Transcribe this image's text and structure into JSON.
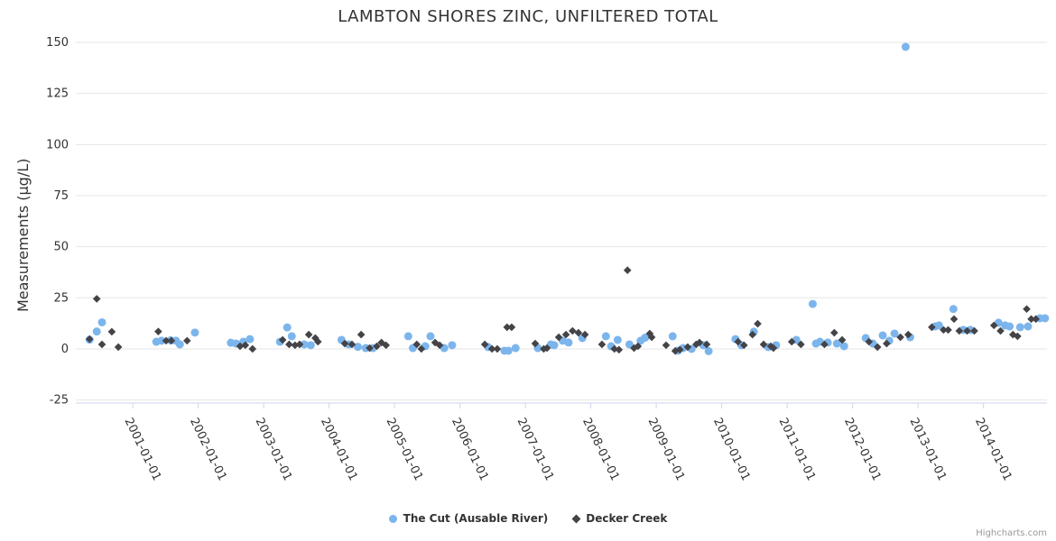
{
  "credits": "Highcharts.com",
  "colors": {
    "background": "#ffffff",
    "grid_line": "#e6e6e6",
    "axis_line": "#ccd6eb",
    "tick_label": "#333333",
    "title": "#333333",
    "credits_text": "#999999",
    "series_blue": "#7cb5ec",
    "series_dark": "#434348"
  },
  "chart_data": {
    "type": "scatter",
    "title": "LAMBTON SHORES ZINC, UNFILTERED TOTAL",
    "xlabel": "",
    "ylabel": "Measurements (µg/L)",
    "xlim": [
      2000.13,
      2014.97
    ],
    "ylim": [
      -26.5,
      150
    ],
    "yticks": [
      -25,
      0,
      25,
      50,
      75,
      100,
      125,
      150
    ],
    "xticks": [
      2001,
      2002,
      2003,
      2004,
      2005,
      2006,
      2007,
      2008,
      2009,
      2010,
      2011,
      2012,
      2013,
      2014
    ],
    "xtick_labels": [
      "2001-01-01",
      "2002-01-01",
      "2003-01-01",
      "2004-01-01",
      "2005-01-01",
      "2006-01-01",
      "2007-01-01",
      "2008-01-01",
      "2009-01-01",
      "2010-01-01",
      "2011-01-01",
      "2012-01-01",
      "2013-01-01",
      "2014-01-01"
    ],
    "grid": "horizontal-only",
    "legend_position": "bottom-center",
    "x_axis_note": "x values are dates encoded as fractional years",
    "series": [
      {
        "name": "The Cut (Ausable River)",
        "color": "#7cb5ec",
        "marker": "circle",
        "data": [
          [
            2000.34,
            4.5
          ],
          [
            2000.45,
            8.5
          ],
          [
            2000.53,
            13
          ],
          [
            2001.36,
            3.5
          ],
          [
            2001.44,
            4
          ],
          [
            2001.58,
            4.2
          ],
          [
            2001.66,
            4
          ],
          [
            2001.72,
            2.2
          ],
          [
            2001.95,
            8
          ],
          [
            2002.5,
            3
          ],
          [
            2002.58,
            2.6
          ],
          [
            2002.69,
            3.5
          ],
          [
            2002.79,
            4.8
          ],
          [
            2003.25,
            3.5
          ],
          [
            2003.36,
            10.5
          ],
          [
            2003.43,
            6.2
          ],
          [
            2003.62,
            2.2
          ],
          [
            2003.72,
            1.8
          ],
          [
            2004.19,
            4.4
          ],
          [
            2004.3,
            2.2
          ],
          [
            2004.44,
            1
          ],
          [
            2004.56,
            0.4
          ],
          [
            2004.67,
            0.4
          ],
          [
            2005.21,
            6.2
          ],
          [
            2005.28,
            0.4
          ],
          [
            2005.47,
            1.3
          ],
          [
            2005.55,
            6.2
          ],
          [
            2005.76,
            0.4
          ],
          [
            2005.88,
            1.8
          ],
          [
            2006.43,
            0.9
          ],
          [
            2006.68,
            -0.9
          ],
          [
            2006.74,
            -0.9
          ],
          [
            2006.85,
            0.4
          ],
          [
            2007.19,
            0.4
          ],
          [
            2007.39,
            2.2
          ],
          [
            2007.44,
            1.8
          ],
          [
            2007.57,
            4
          ],
          [
            2007.66,
            3.1
          ],
          [
            2007.87,
            5.3
          ],
          [
            2008.23,
            6.2
          ],
          [
            2008.31,
            1.3
          ],
          [
            2008.41,
            4.4
          ],
          [
            2008.59,
            2.2
          ],
          [
            2008.76,
            4
          ],
          [
            2008.83,
            5.5
          ],
          [
            2009.25,
            6.2
          ],
          [
            2009.33,
            -0.9
          ],
          [
            2009.41,
            0.4
          ],
          [
            2009.54,
            0
          ],
          [
            2009.72,
            1.8
          ],
          [
            2009.8,
            -1.1
          ],
          [
            2010.21,
            4.8
          ],
          [
            2010.3,
            1.8
          ],
          [
            2010.49,
            8.4
          ],
          [
            2010.71,
            0.9
          ],
          [
            2010.83,
            1.8
          ],
          [
            2011.14,
            4.4
          ],
          [
            2011.39,
            22
          ],
          [
            2011.44,
            2.6
          ],
          [
            2011.5,
            3.5
          ],
          [
            2011.62,
            3.1
          ],
          [
            2011.76,
            2.6
          ],
          [
            2011.87,
            1.3
          ],
          [
            2012.2,
            5.3
          ],
          [
            2012.31,
            2.6
          ],
          [
            2012.46,
            6.6
          ],
          [
            2012.56,
            4
          ],
          [
            2012.64,
            7.5
          ],
          [
            2012.81,
            147.8
          ],
          [
            2012.88,
            5.7
          ],
          [
            2013.26,
            11
          ],
          [
            2013.32,
            11.5
          ],
          [
            2013.54,
            19.5
          ],
          [
            2013.69,
            9.3
          ],
          [
            2013.8,
            9.3
          ],
          [
            2014.23,
            12.8
          ],
          [
            2014.33,
            11.5
          ],
          [
            2014.4,
            11
          ],
          [
            2014.56,
            10.6
          ],
          [
            2014.68,
            11
          ],
          [
            2014.86,
            15
          ],
          [
            2014.94,
            15
          ]
        ]
      },
      {
        "name": "Decker Creek",
        "color": "#434348",
        "marker": "diamond",
        "data": [
          [
            2000.34,
            4.8
          ],
          [
            2000.45,
            24.5
          ],
          [
            2000.53,
            2.2
          ],
          [
            2000.68,
            8.4
          ],
          [
            2000.78,
            0.9
          ],
          [
            2001.39,
            8.5
          ],
          [
            2001.51,
            4
          ],
          [
            2001.59,
            4
          ],
          [
            2001.83,
            4
          ],
          [
            2002.64,
            1.3
          ],
          [
            2002.72,
            1.8
          ],
          [
            2002.83,
            0
          ],
          [
            2003.29,
            4.4
          ],
          [
            2003.39,
            2.2
          ],
          [
            2003.48,
            1.8
          ],
          [
            2003.55,
            2.2
          ],
          [
            2003.69,
            7
          ],
          [
            2003.79,
            5.3
          ],
          [
            2003.83,
            3.5
          ],
          [
            2004.24,
            2.6
          ],
          [
            2004.35,
            2.2
          ],
          [
            2004.49,
            7
          ],
          [
            2004.62,
            0.4
          ],
          [
            2004.73,
            1.3
          ],
          [
            2004.8,
            3.1
          ],
          [
            2004.87,
            1.8
          ],
          [
            2005.34,
            2.2
          ],
          [
            2005.41,
            0
          ],
          [
            2005.62,
            3.1
          ],
          [
            2005.69,
            1.8
          ],
          [
            2006.38,
            2.2
          ],
          [
            2006.49,
            0
          ],
          [
            2006.57,
            0
          ],
          [
            2006.72,
            10.6
          ],
          [
            2006.79,
            10.6
          ],
          [
            2007.15,
            2.6
          ],
          [
            2007.28,
            0
          ],
          [
            2007.33,
            0.4
          ],
          [
            2007.51,
            5.7
          ],
          [
            2007.62,
            7
          ],
          [
            2007.72,
            8.8
          ],
          [
            2007.81,
            7.9
          ],
          [
            2007.91,
            7
          ],
          [
            2008.17,
            2.2
          ],
          [
            2008.36,
            0
          ],
          [
            2008.43,
            -0.4
          ],
          [
            2008.56,
            38.5
          ],
          [
            2008.66,
            0.4
          ],
          [
            2008.72,
            1.3
          ],
          [
            2008.9,
            7.5
          ],
          [
            2008.93,
            5.7
          ],
          [
            2009.15,
            1.8
          ],
          [
            2009.29,
            -1
          ],
          [
            2009.36,
            -0.4
          ],
          [
            2009.48,
            0.9
          ],
          [
            2009.61,
            2.2
          ],
          [
            2009.66,
            3.1
          ],
          [
            2009.77,
            2.2
          ],
          [
            2010.25,
            3.5
          ],
          [
            2010.34,
            1.8
          ],
          [
            2010.47,
            7
          ],
          [
            2010.55,
            12.3
          ],
          [
            2010.64,
            2.2
          ],
          [
            2010.75,
            1.3
          ],
          [
            2010.79,
            0.4
          ],
          [
            2011.07,
            3.5
          ],
          [
            2011.21,
            2.2
          ],
          [
            2011.57,
            2.2
          ],
          [
            2011.72,
            7.9
          ],
          [
            2011.84,
            4.4
          ],
          [
            2012.25,
            3.5
          ],
          [
            2012.38,
            0.9
          ],
          [
            2012.52,
            2.6
          ],
          [
            2012.73,
            5.7
          ],
          [
            2012.85,
            7
          ],
          [
            2013.21,
            10.6
          ],
          [
            2013.39,
            9.3
          ],
          [
            2013.46,
            9.3
          ],
          [
            2013.55,
            14.6
          ],
          [
            2013.63,
            8.8
          ],
          [
            2013.75,
            8.8
          ],
          [
            2013.86,
            8.8
          ],
          [
            2014.16,
            11.5
          ],
          [
            2014.26,
            8.8
          ],
          [
            2014.45,
            7
          ],
          [
            2014.52,
            6.2
          ],
          [
            2014.66,
            19.5
          ],
          [
            2014.73,
            14.6
          ],
          [
            2014.8,
            14.6
          ]
        ]
      }
    ]
  }
}
